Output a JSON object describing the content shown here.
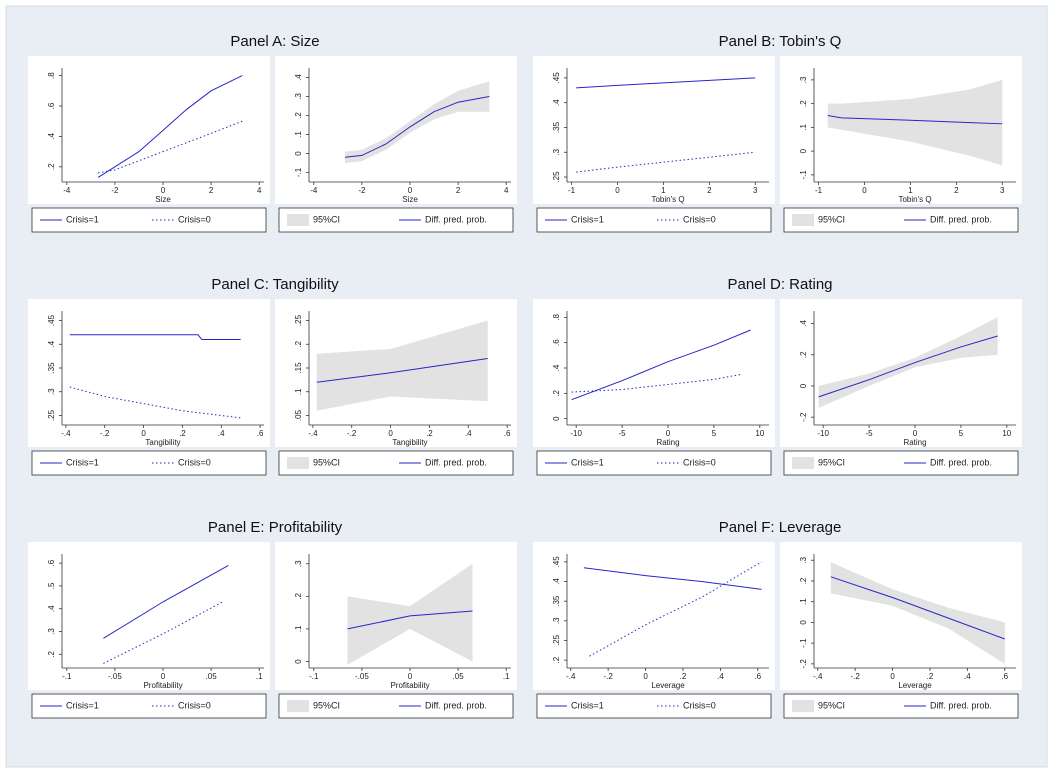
{
  "chart_data": [
    {
      "type": "line",
      "title": "Panel A: Size",
      "xlabel": "Size",
      "xlim": [
        -4.2,
        4.2
      ],
      "xticks": [
        -4,
        -2,
        0,
        2,
        4
      ],
      "ylim": [
        0.1,
        0.85
      ],
      "yticks": [
        {
          "value": 0.2,
          "label": ".2"
        },
        {
          "value": 0.4,
          "label": ".4"
        },
        {
          "value": 0.6,
          "label": ".6"
        },
        {
          "value": 0.8,
          "label": ".8"
        }
      ],
      "series": [
        {
          "name": "Crisis=1",
          "color": "#2626c8",
          "dash": "solid",
          "x": [
            -2.7,
            -2,
            -1,
            0,
            1,
            2,
            3.3
          ],
          "values": [
            0.13,
            0.2,
            0.3,
            0.44,
            0.58,
            0.7,
            0.8
          ]
        },
        {
          "name": "Crisis=0",
          "color": "#2626c8",
          "dash": "dotted",
          "x": [
            -2.7,
            -2,
            -1,
            0,
            1,
            2,
            3.3
          ],
          "values": [
            0.16,
            0.18,
            0.24,
            0.3,
            0.36,
            0.42,
            0.5
          ]
        }
      ]
    },
    {
      "type": "line",
      "xlabel": "Size",
      "xlim": [
        -4.2,
        4.2
      ],
      "xticks": [
        -4,
        -2,
        0,
        2,
        4
      ],
      "ylim": [
        -0.15,
        0.45
      ],
      "yticks": [
        {
          "value": -0.1,
          "label": "-.1"
        },
        0,
        {
          "value": 0.1,
          "label": ".1"
        },
        {
          "value": 0.2,
          "label": ".2"
        },
        {
          "value": 0.3,
          "label": ".3"
        },
        {
          "value": 0.4,
          "label": ".4"
        }
      ],
      "series": [
        {
          "name": "95%CI",
          "color": "#e2e2e2",
          "x": [
            -2.7,
            -2,
            -1,
            0,
            1,
            2,
            3.3
          ],
          "lower": [
            -0.05,
            -0.04,
            0.02,
            0.11,
            0.18,
            0.22,
            0.22
          ],
          "upper": [
            0.01,
            0.02,
            0.08,
            0.17,
            0.26,
            0.33,
            0.38
          ]
        },
        {
          "name": "Diff. pred. prob.",
          "color": "#2626c8",
          "dash": "solid",
          "x": [
            -2.7,
            -2,
            -1,
            0,
            1,
            2,
            3.3
          ],
          "values": [
            -0.02,
            -0.01,
            0.05,
            0.14,
            0.22,
            0.27,
            0.3
          ]
        }
      ]
    },
    {
      "type": "line",
      "title": "Panel B: Tobin's Q",
      "xlabel": "Tobin's Q",
      "xlim": [
        -1.1,
        3.3
      ],
      "xticks": [
        -1,
        0,
        1,
        2,
        3
      ],
      "ylim": [
        0.24,
        0.47
      ],
      "yticks": [
        {
          "value": 0.25,
          "label": ".25"
        },
        {
          "value": 0.3,
          "label": ".3"
        },
        {
          "value": 0.35,
          "label": ".35"
        },
        {
          "value": 0.4,
          "label": ".4"
        },
        {
          "value": 0.45,
          "label": ".45"
        }
      ],
      "series": [
        {
          "name": "Crisis=1",
          "color": "#2626c8",
          "dash": "solid",
          "x": [
            -0.9,
            0,
            1,
            2,
            3
          ],
          "values": [
            0.43,
            0.435,
            0.44,
            0.445,
            0.45
          ]
        },
        {
          "name": "Crisis=0",
          "color": "#2626c8",
          "dash": "dotted",
          "x": [
            -0.9,
            0,
            1,
            2,
            3
          ],
          "values": [
            0.26,
            0.27,
            0.28,
            0.29,
            0.3
          ]
        }
      ]
    },
    {
      "type": "line",
      "xlabel": "Tobin's Q",
      "xlim": [
        -1.1,
        3.3
      ],
      "xticks": [
        -1,
        0,
        1,
        2,
        3
      ],
      "ylim": [
        -0.13,
        0.35
      ],
      "yticks": [
        {
          "value": -0.1,
          "label": "-.1"
        },
        0,
        {
          "value": 0.1,
          "label": ".1"
        },
        {
          "value": 0.2,
          "label": ".2"
        },
        {
          "value": 0.3,
          "label": ".3"
        }
      ],
      "series": [
        {
          "name": "95%CI",
          "color": "#e2e2e2",
          "x": [
            -0.8,
            -0.5,
            1,
            2.3,
            3
          ],
          "lower": [
            0.1,
            0.09,
            0.04,
            -0.02,
            -0.06
          ],
          "upper": [
            0.2,
            0.2,
            0.22,
            0.26,
            0.3
          ]
        },
        {
          "name": "Diff. pred. prob.",
          "color": "#2626c8",
          "dash": "solid",
          "x": [
            -0.8,
            -0.5,
            1,
            2.3,
            3
          ],
          "values": [
            0.15,
            0.14,
            0.13,
            0.12,
            0.115
          ]
        }
      ]
    },
    {
      "type": "line",
      "title": "Panel C: Tangibility",
      "xlabel": "Tangibility",
      "xlim": [
        -0.42,
        0.62
      ],
      "xticks": [
        {
          "value": -0.4,
          "label": "-.4"
        },
        {
          "value": -0.2,
          "label": "-.2"
        },
        0,
        {
          "value": 0.2,
          "label": ".2"
        },
        {
          "value": 0.4,
          "label": ".4"
        },
        {
          "value": 0.6,
          "label": ".6"
        }
      ],
      "ylim": [
        0.23,
        0.47
      ],
      "yticks": [
        {
          "value": 0.25,
          "label": ".25"
        },
        {
          "value": 0.3,
          "label": ".3"
        },
        {
          "value": 0.35,
          "label": ".35"
        },
        {
          "value": 0.4,
          "label": ".4"
        },
        {
          "value": 0.45,
          "label": ".45"
        }
      ],
      "series": [
        {
          "name": "Crisis=1",
          "color": "#2626c8",
          "dash": "solid",
          "x": [
            -0.38,
            0.28,
            0.3,
            0.5
          ],
          "values": [
            0.42,
            0.42,
            0.41,
            0.41
          ]
        },
        {
          "name": "Crisis=0",
          "color": "#2626c8",
          "dash": "dotted",
          "x": [
            -0.38,
            -0.2,
            0,
            0.2,
            0.5
          ],
          "values": [
            0.31,
            0.29,
            0.275,
            0.26,
            0.245
          ]
        }
      ]
    },
    {
      "type": "line",
      "xlabel": "Tangibility",
      "xlim": [
        -0.42,
        0.62
      ],
      "xticks": [
        {
          "value": -0.4,
          "label": "-.4"
        },
        {
          "value": -0.2,
          "label": "-.2"
        },
        0,
        {
          "value": 0.2,
          "label": ".2"
        },
        {
          "value": 0.4,
          "label": ".4"
        },
        {
          "value": 0.6,
          "label": ".6"
        }
      ],
      "ylim": [
        0.03,
        0.27
      ],
      "yticks": [
        {
          "value": 0.05,
          "label": ".05"
        },
        {
          "value": 0.1,
          "label": ".1"
        },
        {
          "value": 0.15,
          "label": ".15"
        },
        {
          "value": 0.2,
          "label": ".2"
        },
        {
          "value": 0.25,
          "label": ".25"
        }
      ],
      "series": [
        {
          "name": "95%CI",
          "color": "#e2e2e2",
          "x": [
            -0.38,
            0,
            0.5
          ],
          "lower": [
            0.06,
            0.09,
            0.08
          ],
          "upper": [
            0.18,
            0.19,
            0.25
          ]
        },
        {
          "name": "Diff. pred. prob.",
          "color": "#2626c8",
          "dash": "solid",
          "x": [
            -0.38,
            0,
            0.5
          ],
          "values": [
            0.12,
            0.14,
            0.17
          ]
        }
      ]
    },
    {
      "type": "line",
      "title": "Panel D: Rating",
      "xlabel": "Rating",
      "xlim": [
        -11,
        11
      ],
      "xticks": [
        -10,
        -5,
        0,
        5,
        10
      ],
      "ylim": [
        -0.05,
        0.85
      ],
      "yticks": [
        0,
        {
          "value": 0.2,
          "label": ".2"
        },
        {
          "value": 0.4,
          "label": ".4"
        },
        {
          "value": 0.6,
          "label": ".6"
        },
        {
          "value": 0.8,
          "label": ".8"
        }
      ],
      "series": [
        {
          "name": "Crisis=1",
          "color": "#2626c8",
          "dash": "solid",
          "x": [
            -10.5,
            -5,
            0,
            5,
            9
          ],
          "values": [
            0.15,
            0.3,
            0.45,
            0.58,
            0.7
          ]
        },
        {
          "name": "Crisis=0",
          "color": "#2626c8",
          "dash": "dotted",
          "x": [
            -10.5,
            -5,
            0,
            5,
            8
          ],
          "values": [
            0.21,
            0.23,
            0.27,
            0.31,
            0.35
          ]
        }
      ]
    },
    {
      "type": "line",
      "xlabel": "Rating",
      "xlim": [
        -11,
        11
      ],
      "xticks": [
        -10,
        -5,
        0,
        5,
        10
      ],
      "ylim": [
        -0.25,
        0.48
      ],
      "yticks": [
        {
          "value": -0.2,
          "label": "-.2"
        },
        0,
        {
          "value": 0.2,
          "label": ".2"
        },
        {
          "value": 0.4,
          "label": ".4"
        }
      ],
      "series": [
        {
          "name": "95%CI",
          "color": "#e2e2e2",
          "x": [
            -10.5,
            -5,
            0,
            5,
            9
          ],
          "lower": [
            -0.14,
            0,
            0.12,
            0.18,
            0.2
          ],
          "upper": [
            0,
            0.08,
            0.18,
            0.32,
            0.44
          ]
        },
        {
          "name": "Diff. pred. prob.",
          "color": "#2626c8",
          "dash": "solid",
          "x": [
            -10.5,
            -5,
            0,
            5,
            9
          ],
          "values": [
            -0.07,
            0.04,
            0.15,
            0.25,
            0.32
          ]
        }
      ]
    },
    {
      "type": "line",
      "title": "Panel E: Profitability",
      "xlabel": "Profitability",
      "xlim": [
        -0.105,
        0.105
      ],
      "xticks": [
        {
          "value": -0.1,
          "label": "-.1"
        },
        {
          "value": -0.05,
          "label": "-.05"
        },
        0,
        {
          "value": 0.05,
          "label": ".05"
        },
        {
          "value": 0.1,
          "label": ".1"
        }
      ],
      "ylim": [
        0.14,
        0.64
      ],
      "yticks": [
        {
          "value": 0.2,
          "label": ".2"
        },
        {
          "value": 0.3,
          "label": ".3"
        },
        {
          "value": 0.4,
          "label": ".4"
        },
        {
          "value": 0.5,
          "label": ".5"
        },
        {
          "value": 0.6,
          "label": ".6"
        }
      ],
      "series": [
        {
          "name": "Crisis=1",
          "color": "#2626c8",
          "dash": "solid",
          "x": [
            -0.062,
            0,
            0.068
          ],
          "values": [
            0.27,
            0.43,
            0.59
          ]
        },
        {
          "name": "Crisis=0",
          "color": "#2626c8",
          "dash": "dotted",
          "x": [
            -0.062,
            0,
            0.062
          ],
          "values": [
            0.16,
            0.29,
            0.43
          ]
        }
      ]
    },
    {
      "type": "line",
      "xlabel": "Profitability",
      "xlim": [
        -0.105,
        0.105
      ],
      "xticks": [
        {
          "value": -0.1,
          "label": "-.1"
        },
        {
          "value": -0.05,
          "label": "-.05"
        },
        0,
        {
          "value": 0.05,
          "label": ".05"
        },
        {
          "value": 0.1,
          "label": ".1"
        }
      ],
      "ylim": [
        -0.02,
        0.33
      ],
      "yticks": [
        0,
        {
          "value": 0.1,
          "label": ".1"
        },
        {
          "value": 0.2,
          "label": ".2"
        },
        {
          "value": 0.3,
          "label": ".3"
        }
      ],
      "series": [
        {
          "name": "95%CI",
          "color": "#e2e2e2",
          "x": [
            -0.065,
            0,
            0.065
          ],
          "lower": [
            -0.01,
            0.1,
            0
          ],
          "upper": [
            0.2,
            0.17,
            0.3
          ]
        },
        {
          "name": "Diff. pred. prob.",
          "color": "#2626c8",
          "dash": "solid",
          "x": [
            -0.065,
            0,
            0.065
          ],
          "values": [
            0.1,
            0.14,
            0.155
          ]
        }
      ]
    },
    {
      "type": "line",
      "title": "Panel F: Leverage",
      "xlabel": "Leverage",
      "xlim": [
        -0.42,
        0.66
      ],
      "xticks": [
        {
          "value": -0.4,
          "label": "-.4"
        },
        {
          "value": -0.2,
          "label": "-.2"
        },
        0,
        {
          "value": 0.2,
          "label": ".2"
        },
        {
          "value": 0.4,
          "label": ".4"
        },
        {
          "value": 0.6,
          "label": ".6"
        }
      ],
      "ylim": [
        0.18,
        0.47
      ],
      "yticks": [
        {
          "value": 0.2,
          "label": ".2"
        },
        {
          "value": 0.25,
          "label": ".25"
        },
        {
          "value": 0.3,
          "label": ".3"
        },
        {
          "value": 0.35,
          "label": ".35"
        },
        {
          "value": 0.4,
          "label": ".4"
        },
        {
          "value": 0.45,
          "label": ".45"
        }
      ],
      "series": [
        {
          "name": "Crisis=1",
          "color": "#2626c8",
          "dash": "solid",
          "x": [
            -0.33,
            0,
            0.3,
            0.62
          ],
          "values": [
            0.435,
            0.415,
            0.4,
            0.38
          ]
        },
        {
          "name": "Crisis=0",
          "color": "#2626c8",
          "dash": "dotted",
          "x": [
            -0.3,
            0,
            0.3,
            0.62
          ],
          "values": [
            0.21,
            0.29,
            0.36,
            0.45
          ]
        }
      ]
    },
    {
      "type": "line",
      "xlabel": "Leverage",
      "xlim": [
        -0.42,
        0.66
      ],
      "xticks": [
        {
          "value": -0.4,
          "label": "-.4"
        },
        {
          "value": -0.2,
          "label": "-.2"
        },
        0,
        {
          "value": 0.2,
          "label": ".2"
        },
        {
          "value": 0.4,
          "label": ".4"
        },
        {
          "value": 0.6,
          "label": ".6"
        }
      ],
      "ylim": [
        -0.22,
        0.33
      ],
      "yticks": [
        {
          "value": -0.2,
          "label": "-.2"
        },
        {
          "value": -0.1,
          "label": "-.1"
        },
        0,
        {
          "value": 0.1,
          "label": ".1"
        },
        {
          "value": 0.2,
          "label": ".2"
        },
        {
          "value": 0.3,
          "label": ".3"
        }
      ],
      "series": [
        {
          "name": "95%CI",
          "color": "#e2e2e2",
          "x": [
            -0.33,
            0,
            0.3,
            0.6
          ],
          "lower": [
            0.14,
            0.08,
            -0.03,
            -0.2
          ],
          "upper": [
            0.29,
            0.16,
            0.07,
            0
          ]
        },
        {
          "name": "Diff. pred. prob.",
          "color": "#2626c8",
          "dash": "solid",
          "x": [
            -0.33,
            0,
            0.3,
            0.6
          ],
          "values": [
            0.22,
            0.12,
            0.02,
            -0.08
          ]
        }
      ]
    }
  ]
}
